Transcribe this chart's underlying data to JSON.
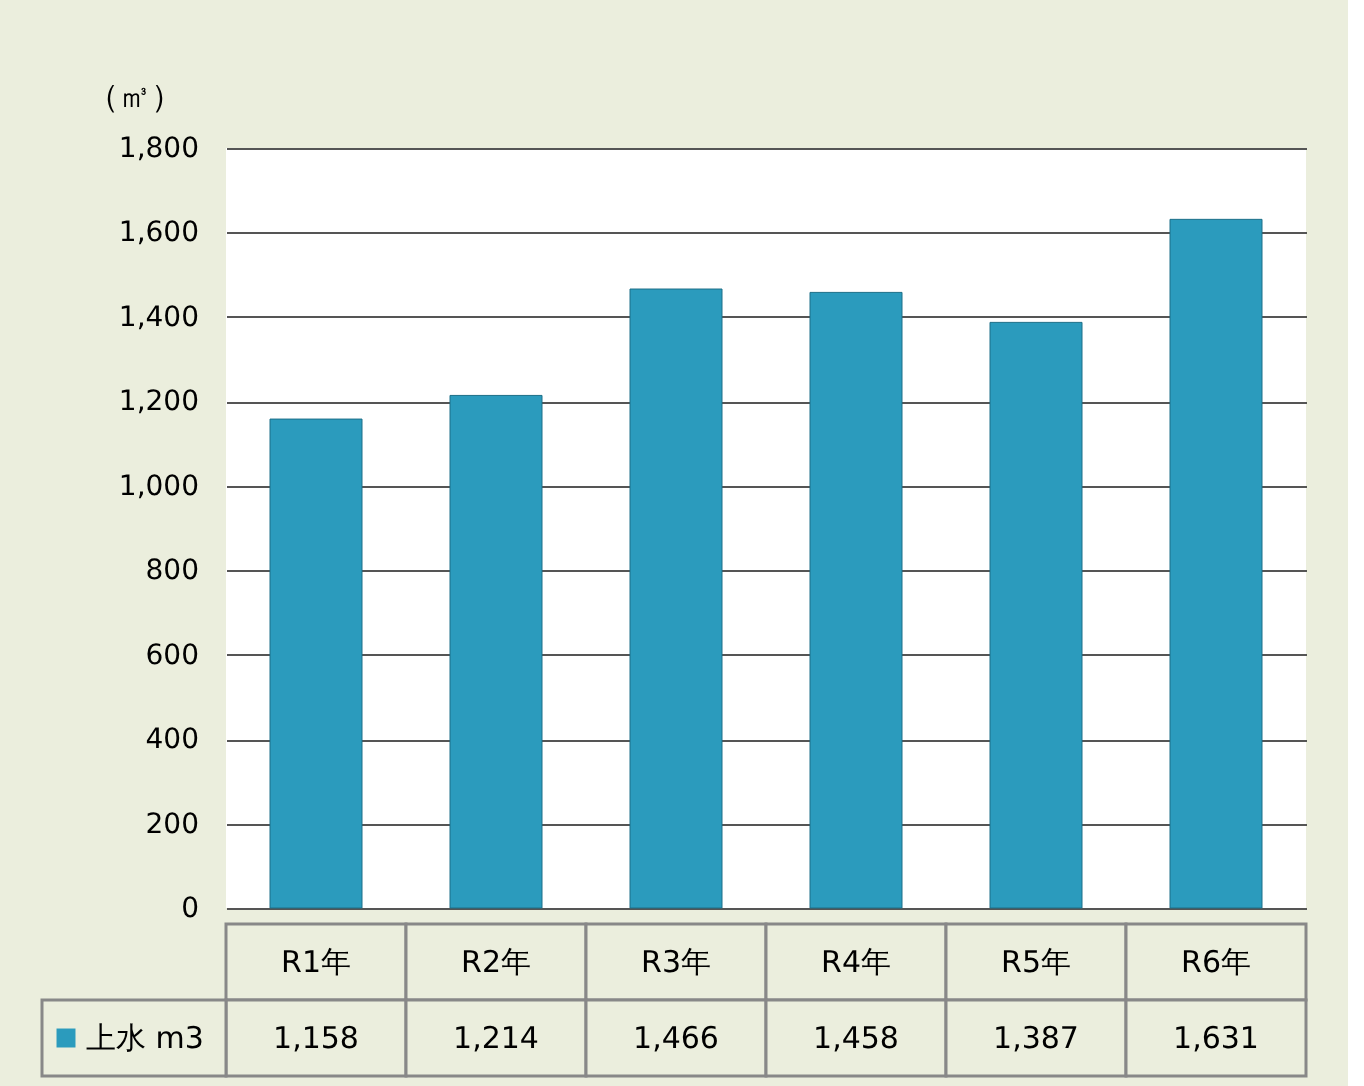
{
  "chart_data": {
    "type": "bar",
    "ylabel": "（㎥）",
    "categories": [
      "R1年",
      "R2年",
      "R3年",
      "R4年",
      "R5年",
      "R6年"
    ],
    "series": [
      {
        "name": "上水 m3",
        "color": "#2b9bbd",
        "values": [
          1158,
          1214,
          1466,
          1458,
          1387,
          1631
        ],
        "value_labels": [
          "1,158",
          "1,214",
          "1,466",
          "1,458",
          "1,387",
          "1,631"
        ]
      }
    ],
    "ylim": [
      0,
      1800
    ],
    "yticks": [
      0,
      200,
      400,
      600,
      800,
      {
        "value": 1000,
        "label": "1,000"
      },
      {
        "value": 1200,
        "label": "1,200"
      },
      {
        "value": 1400,
        "label": "1,400"
      },
      {
        "value": 1600,
        "label": "1,600"
      },
      {
        "value": 1800,
        "label": "1,800"
      }
    ],
    "grid": "y",
    "legend": "bottom left"
  }
}
